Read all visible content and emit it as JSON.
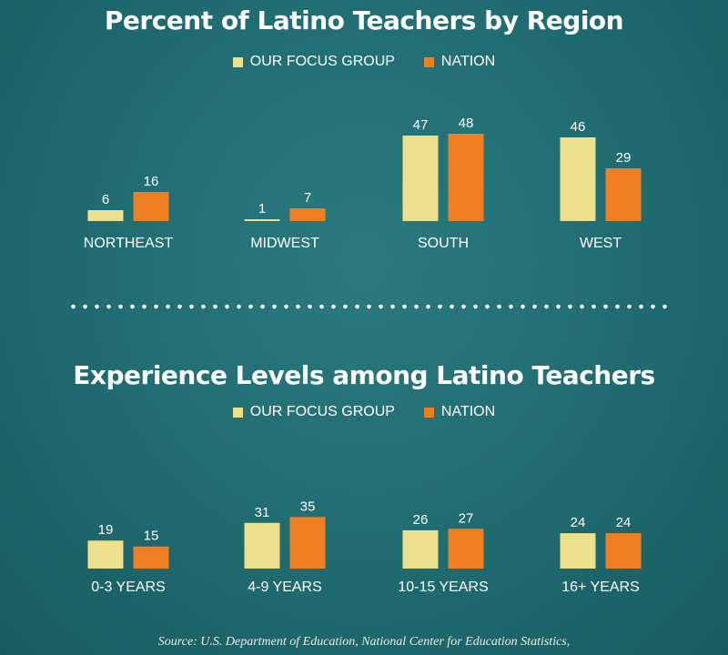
{
  "colors": {
    "focus": "#ede08c",
    "nation": "#f07f23"
  },
  "divider": "dotted",
  "source_text": "Source: U.S. Department of Education, National Center for Education Statistics,",
  "chart_data": [
    {
      "type": "bar",
      "title": "Percent of Latino Teachers by Region",
      "categories": [
        "NORTHEAST",
        "MIDWEST",
        "SOUTH",
        "WEST"
      ],
      "series": [
        {
          "name": "OUR FOCUS GROUP",
          "values": [
            6,
            1,
            47,
            46
          ]
        },
        {
          "name": "NATION",
          "values": [
            16,
            7,
            48,
            29
          ]
        }
      ],
      "ylim": [
        0,
        50
      ],
      "grid": false,
      "legend": "top-center"
    },
    {
      "type": "bar",
      "title": "Experience Levels among Latino Teachers",
      "categories": [
        "0-3 YEARS",
        "4-9 YEARS",
        "10-15 YEARS",
        "16+ YEARS"
      ],
      "series": [
        {
          "name": "OUR FOCUS GROUP",
          "values": [
            19,
            31,
            26,
            24
          ]
        },
        {
          "name": "NATION",
          "values": [
            15,
            35,
            27,
            24
          ]
        }
      ],
      "ylim": [
        0,
        40
      ],
      "grid": false,
      "legend": "top-center"
    }
  ]
}
